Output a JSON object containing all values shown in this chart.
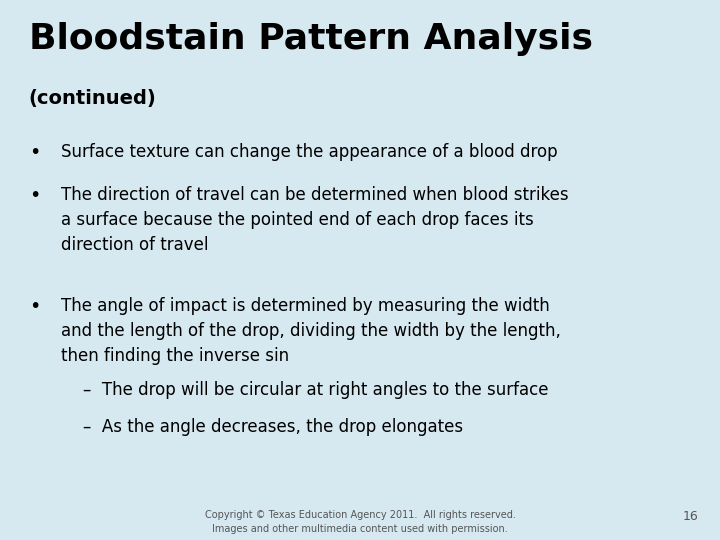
{
  "background_color": "#d6e8f0",
  "title": "Bloodstain Pattern Analysis",
  "subtitle": "(continued)",
  "title_fontsize": 26,
  "subtitle_fontsize": 14,
  "title_color": "#000000",
  "body_fontsize": 12,
  "body_color": "#000000",
  "bullet_points": [
    "Surface texture can change the appearance of a blood drop",
    "The direction of travel can be determined when blood strikes\na surface because the pointed end of each drop faces its\ndirection of travel",
    "The angle of impact is determined by measuring the width\nand the length of the drop, dividing the width by the length,\nthen finding the inverse sin"
  ],
  "sub_bullets": [
    "–  The drop will be circular at right angles to the surface",
    "–  As the angle decreases, the drop elongates"
  ],
  "footer_text": "Copyright © Texas Education Agency 2011.  All rights reserved.\nImages and other multimedia content used with permission.",
  "page_number": "16",
  "footer_fontsize": 7,
  "page_num_fontsize": 9
}
